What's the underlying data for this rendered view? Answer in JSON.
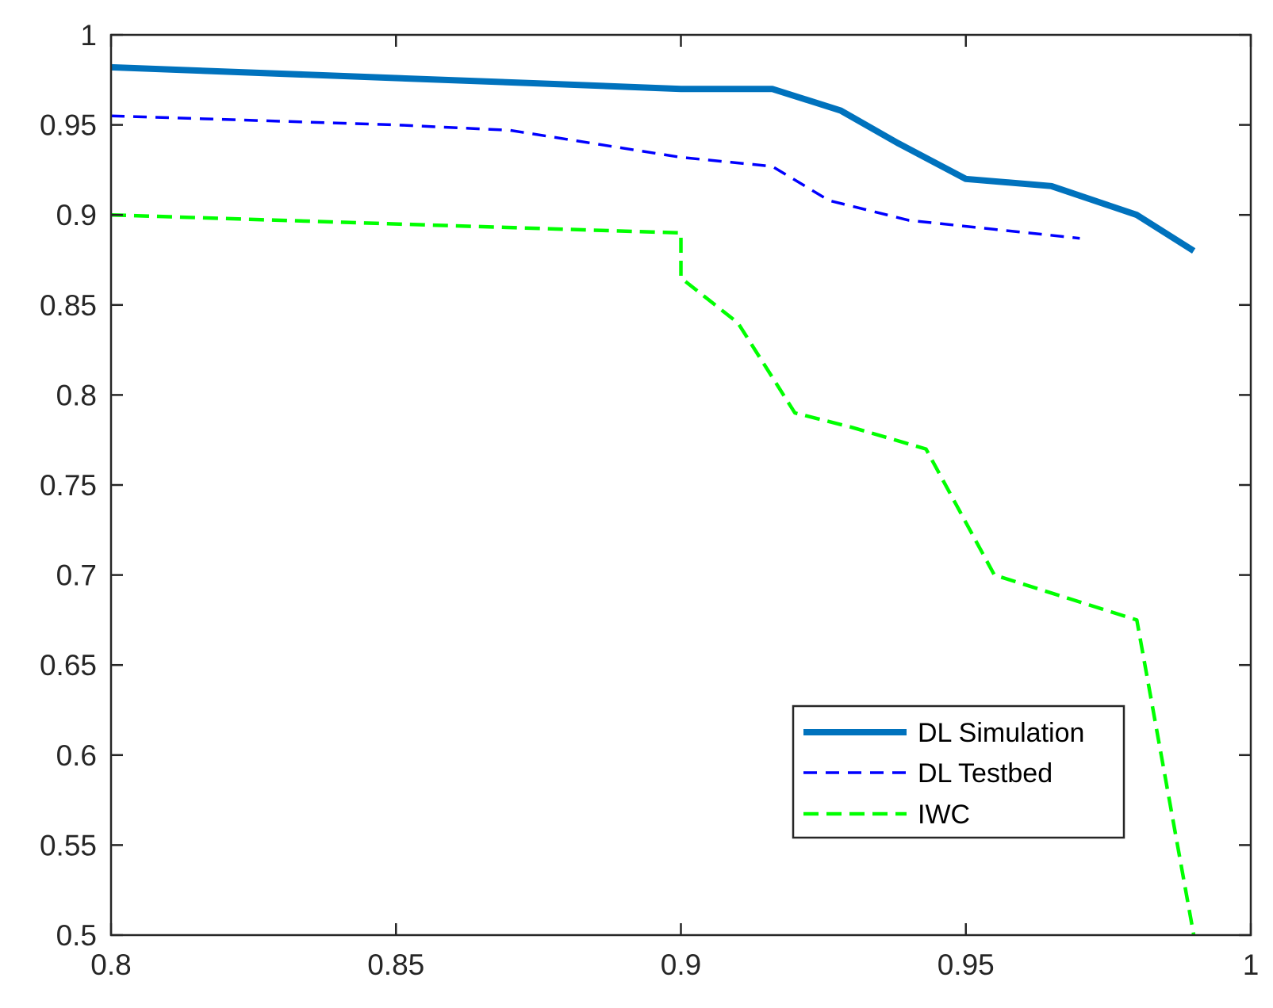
{
  "chart_data": {
    "type": "line",
    "title": "",
    "xlabel": "",
    "ylabel": "",
    "xlim": [
      0.8,
      1
    ],
    "ylim": [
      0.5,
      1
    ],
    "xticks": [
      0.8,
      0.85,
      0.9,
      0.95,
      1
    ],
    "xtick_labels": [
      "0.8",
      "0.85",
      "0.9",
      "0.95",
      "1"
    ],
    "yticks": [
      0.5,
      0.55,
      0.6,
      0.65,
      0.7,
      0.75,
      0.8,
      0.85,
      0.9,
      0.95,
      1
    ],
    "ytick_labels": [
      "0.5",
      "0.55",
      "0.6",
      "0.65",
      "0.7",
      "0.75",
      "0.8",
      "0.85",
      "0.9",
      "0.95",
      "1"
    ],
    "grid": false,
    "legend_position": "bottom-right",
    "series": [
      {
        "name": "DL Simulation",
        "color": "#0072bd",
        "style": "solid",
        "x": [
          0.8,
          0.85,
          0.875,
          0.9,
          0.916,
          0.928,
          0.938,
          0.95,
          0.965,
          0.98,
          0.99
        ],
        "y": [
          0.982,
          0.976,
          0.973,
          0.97,
          0.97,
          0.958,
          0.94,
          0.92,
          0.916,
          0.9,
          0.88
        ]
      },
      {
        "name": "DL Testbed",
        "color": "#0000ff",
        "style": "dashed",
        "x": [
          0.8,
          0.85,
          0.87,
          0.9,
          0.916,
          0.926,
          0.94,
          0.955,
          0.97
        ],
        "y": [
          0.955,
          0.95,
          0.947,
          0.932,
          0.927,
          0.908,
          0.897,
          0.892,
          0.887
        ]
      },
      {
        "name": "IWC",
        "color": "#00ff00",
        "style": "dashed",
        "x": [
          0.8,
          0.85,
          0.9,
          0.9,
          0.91,
          0.92,
          0.93,
          0.943,
          0.955,
          0.965,
          0.98,
          0.99
        ],
        "y": [
          0.9,
          0.895,
          0.89,
          0.865,
          0.84,
          0.79,
          0.782,
          0.77,
          0.7,
          0.69,
          0.675,
          0.5
        ]
      }
    ]
  }
}
